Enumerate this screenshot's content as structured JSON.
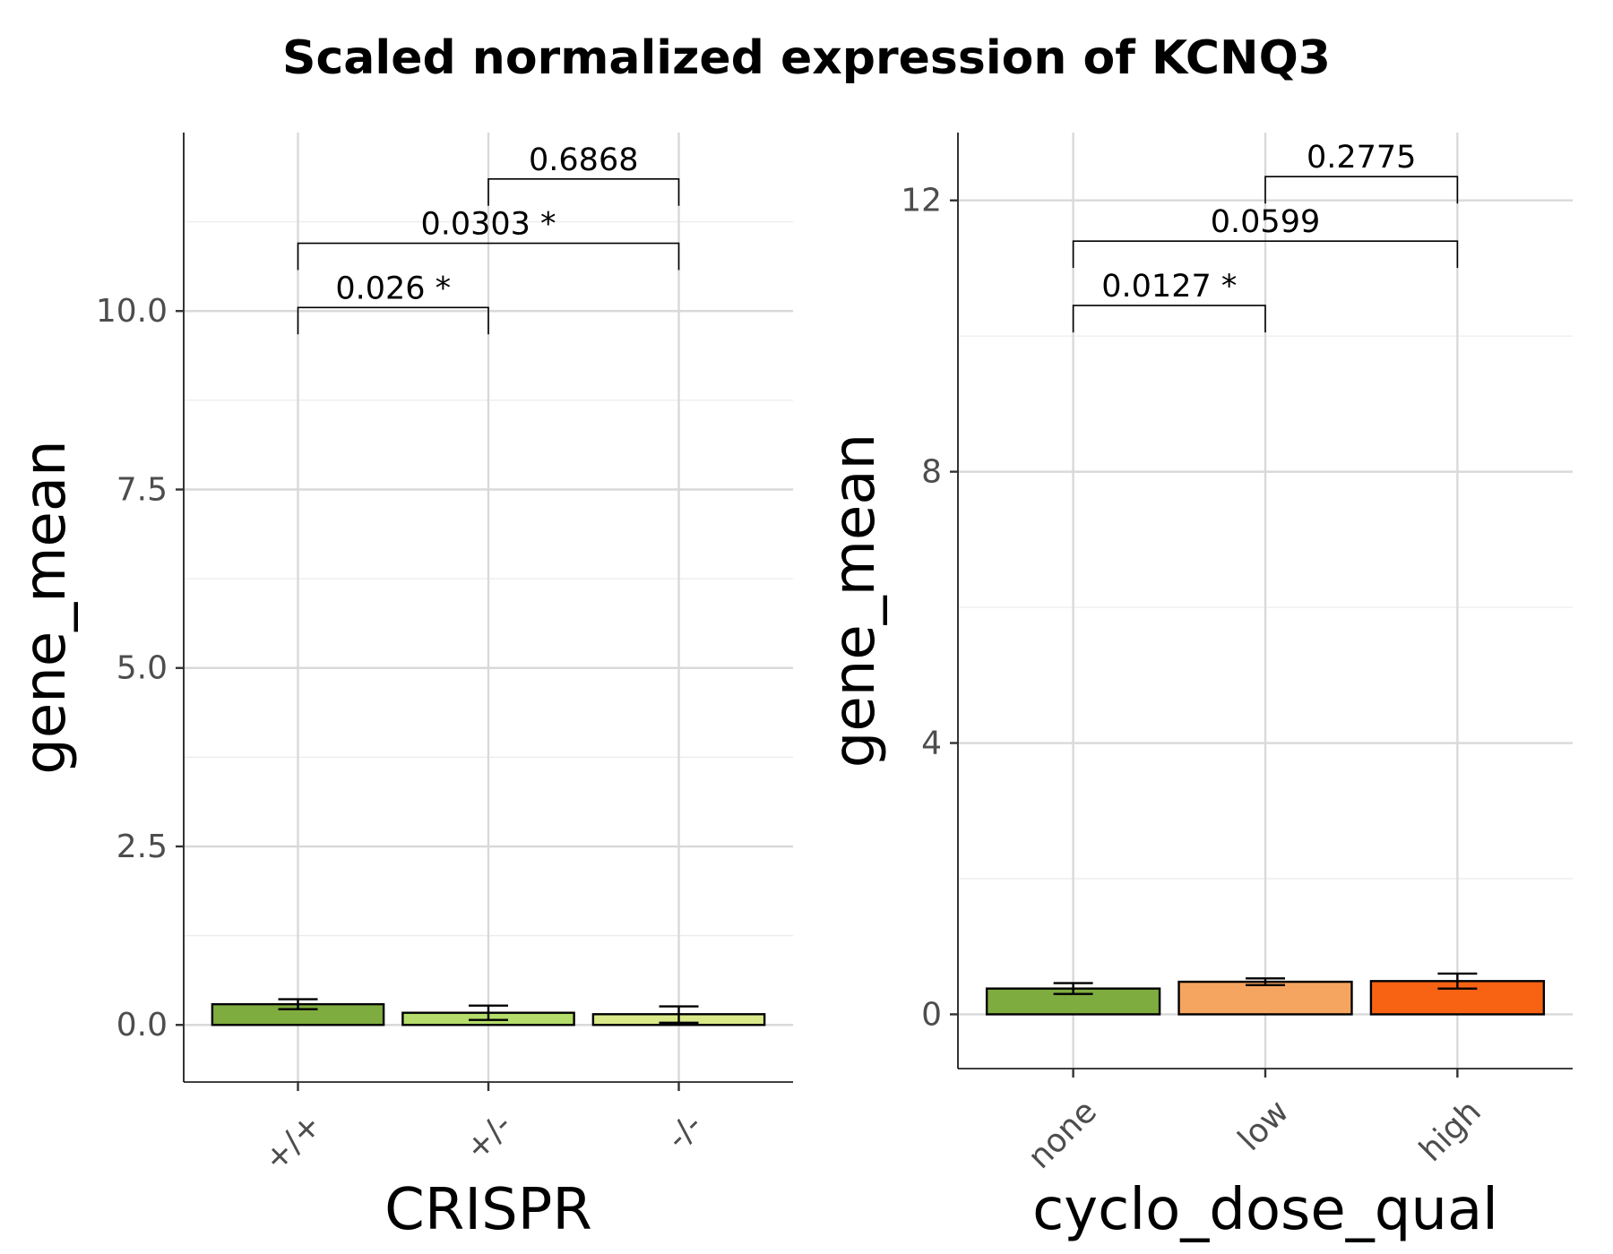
{
  "chart_title": "Scaled normalized expression of KCNQ3",
  "chart_data": [
    {
      "type": "bar",
      "title": "",
      "xlabel": "CRISPR",
      "ylabel": "gene_mean",
      "categories": [
        "+/+",
        "+/-",
        "-/-"
      ],
      "values": [
        0.29,
        0.17,
        0.15
      ],
      "error_low": [
        0.22,
        0.07,
        0.03
      ],
      "error_high": [
        0.36,
        0.27,
        0.26
      ],
      "colors": [
        "#7fac3f",
        "#b5dd6b",
        "#d9e98a"
      ],
      "ylim": [
        -0.8,
        12.5
      ],
      "yticks": [
        0.0,
        2.5,
        5.0,
        7.5,
        10.0
      ],
      "ytick_labels": [
        "0.0",
        "2.5",
        "5.0",
        "7.5",
        "10.0"
      ],
      "grid": true,
      "comparisons": [
        {
          "from": 0,
          "to": 1,
          "label": "0.026 *",
          "y": 10.05
        },
        {
          "from": 0,
          "to": 2,
          "label": "0.0303 *",
          "y": 10.95
        },
        {
          "from": 1,
          "to": 2,
          "label": "0.6868",
          "y": 11.85
        }
      ]
    },
    {
      "type": "bar",
      "title": "",
      "xlabel": "cyclo_dose_qual",
      "ylabel": "gene_mean",
      "categories": [
        "none",
        "low",
        "high"
      ],
      "values": [
        0.38,
        0.48,
        0.49
      ],
      "error_low": [
        0.3,
        0.43,
        0.38
      ],
      "error_high": [
        0.46,
        0.53,
        0.6
      ],
      "colors": [
        "#7fac3f",
        "#f5a55f",
        "#f86313"
      ],
      "ylim": [
        -0.8,
        13.0
      ],
      "yticks": [
        0,
        4,
        8,
        12
      ],
      "ytick_labels": [
        "0",
        "4",
        "8",
        "12"
      ],
      "grid": true,
      "comparisons": [
        {
          "from": 0,
          "to": 1,
          "label": "0.0127 *",
          "y": 10.45
        },
        {
          "from": 0,
          "to": 2,
          "label": "0.0599",
          "y": 11.4
        },
        {
          "from": 1,
          "to": 2,
          "label": "0.2775",
          "y": 12.35
        }
      ]
    }
  ]
}
